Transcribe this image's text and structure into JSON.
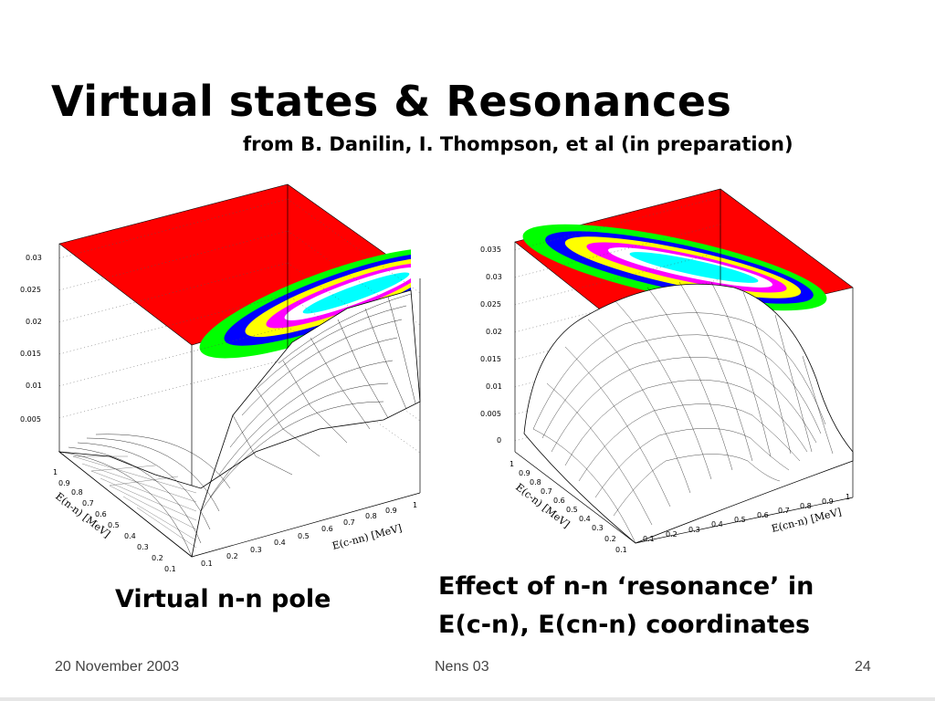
{
  "slide": {
    "title": "Virtual states & Resonances",
    "subtitle": "from B. Danilin, I. Thompson, et al (in preparation)",
    "caption_left": "Virtual n-n pole",
    "caption_right_line1": "Effect of n-n ‘resonance’ in",
    "caption_right_line2": "E(c-n), E(cn-n) coordinates",
    "footer": {
      "date": "20 November 2003",
      "conference": "Nens 03",
      "page": "24"
    }
  },
  "chart_data": [
    {
      "type": "surface3d",
      "name_caption": "Virtual n-n pole",
      "zticks": [
        "0.03",
        "0.025",
        "0.02",
        "0.015",
        "0.01",
        "0.005"
      ],
      "left_axis_label": "E(n-n) [MeV]",
      "left_ticks": [
        "1",
        "0.9",
        "0.8",
        "0.7",
        "0.6",
        "0.5",
        "0.4",
        "0.3",
        "0.2",
        "0.1"
      ],
      "right_axis_label": "E(c-nn) [MeV]",
      "right_ticks": [
        "0.1",
        "0.2",
        "0.3",
        "0.4",
        "0.5",
        "0.6",
        "0.7",
        "0.8",
        "0.9",
        "1"
      ],
      "contour_colors": [
        "#ff0000",
        "#00ff00",
        "#0000ff",
        "#ffff00",
        "#ff00ff",
        "#ffffff",
        "#00ffff"
      ]
    },
    {
      "type": "surface3d",
      "name_caption": "Effect of n-n resonance",
      "zticks": [
        "0.035",
        "0.03",
        "0.025",
        "0.02",
        "0.015",
        "0.01",
        "0.005",
        "0"
      ],
      "left_axis_label": "E(c-n) [MeV]",
      "left_ticks": [
        "1",
        "0.9",
        "0.8",
        "0.7",
        "0.6",
        "0.5",
        "0.4",
        "0.3",
        "0.2",
        "0.1"
      ],
      "right_axis_label": "E(cn-n) [MeV]",
      "right_ticks": [
        "0.1",
        "0.2",
        "0.3",
        "0.4",
        "0.5",
        "0.6",
        "0.7",
        "0.8",
        "0.9",
        "1"
      ],
      "contour_colors": [
        "#ff0000",
        "#00ff00",
        "#0000ff",
        "#ffff00",
        "#ff00ff",
        "#ffffff",
        "#00ffff"
      ]
    }
  ]
}
